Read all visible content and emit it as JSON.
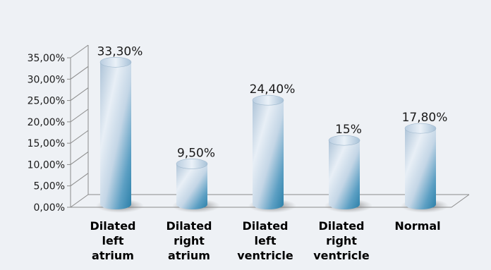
{
  "chart_data": {
    "type": "bar",
    "categories": [
      [
        "Dilated",
        "left",
        "atrium"
      ],
      [
        "Dilated",
        "right",
        "atrium"
      ],
      [
        "Dilated",
        "left",
        "ventricle"
      ],
      [
        "Dilated",
        "right",
        "ventricle"
      ],
      [
        "Normal"
      ]
    ],
    "values": [
      33.3,
      9.5,
      24.4,
      15,
      17.8
    ],
    "data_labels": [
      "33,30%",
      "9,50%",
      "24,40%",
      "15%",
      "17,80%"
    ],
    "y_ticks": [
      "0,00%",
      "5,00%",
      "10,00%",
      "15,00%",
      "20,00%",
      "25,00%",
      "30,00%",
      "35,00%"
    ],
    "ylim": [
      0,
      35
    ],
    "title": "",
    "xlabel": "",
    "ylabel": "",
    "grid": false,
    "legend": "none",
    "style": "3d-cylinder",
    "colors": {
      "bar_light": "#e6eef6",
      "bar_mid": "#9bbbd6",
      "bar_dark": "#2f86ad",
      "axis": "#8a8a8a",
      "background": "#eef1f5",
      "shadow": "#8f8f8f"
    }
  }
}
